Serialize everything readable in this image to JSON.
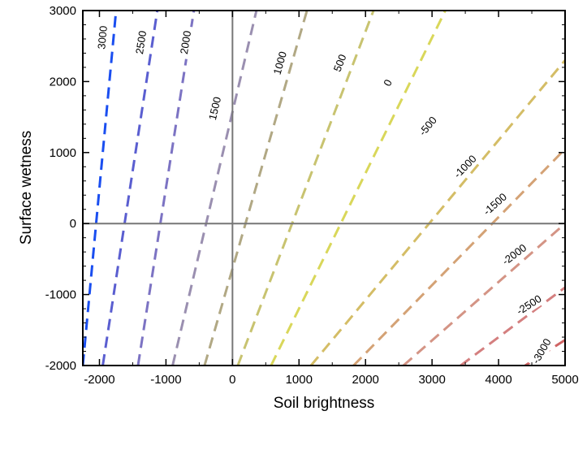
{
  "chart_data": {
    "type": "line",
    "title": "",
    "xlabel": "Soil brightness",
    "ylabel": "Surface wetness",
    "xlim": [
      -2250,
      5000
    ],
    "ylim": [
      -2000,
      3000
    ],
    "xticks": [
      -2000,
      -1000,
      0,
      1000,
      2000,
      3000,
      4000,
      5000
    ],
    "yticks": [
      -2000,
      -1000,
      0,
      1000,
      2000,
      3000
    ],
    "xtick_labels": [
      "-2000",
      "-1000",
      "0",
      "1000",
      "2000",
      "3000",
      "4000",
      "5000"
    ],
    "ytick_labels": [
      "-2000",
      "-1000",
      "0",
      "1000",
      "2000",
      "3000"
    ],
    "zero_lines": true,
    "grid": false,
    "contours": [
      {
        "level": 3000,
        "label": "3000",
        "color": "#1a4ef0",
        "p1": [
          -2250,
          -2000
        ],
        "p2": [
          -1750,
          3000
        ]
      },
      {
        "level": 2500,
        "label": "2500",
        "color": "#5a5ed0",
        "p1": [
          -1950,
          -2000
        ],
        "p2": [
          -1130,
          3000
        ]
      },
      {
        "level": 2000,
        "label": "2000",
        "color": "#7c73c3",
        "p1": [
          -1420,
          -2000
        ],
        "p2": [
          -580,
          3000
        ]
      },
      {
        "level": 1500,
        "label": "1500",
        "color": "#9a8fb0",
        "p1": [
          -900,
          -2000
        ],
        "p2": [
          360,
          3000
        ]
      },
      {
        "level": 1000,
        "label": "1000",
        "color": "#b1a884",
        "p1": [
          -420,
          -2000
        ],
        "p2": [
          1120,
          3000
        ]
      },
      {
        "level": 500,
        "label": "500",
        "color": "#c8c370",
        "p1": [
          80,
          -2000
        ],
        "p2": [
          2120,
          3000
        ]
      },
      {
        "level": 0,
        "label": "0",
        "color": "#d9d75a",
        "p1": [
          580,
          -2000
        ],
        "p2": [
          3200,
          3000
        ]
      },
      {
        "level": -500,
        "label": "-500",
        "color": "#d4bd66",
        "p1": [
          1180,
          -2000
        ],
        "p2": [
          5000,
          2300
        ]
      },
      {
        "level": -1000,
        "label": "-1000",
        "color": "#d4a275",
        "p1": [
          1820,
          -2000
        ],
        "p2": [
          5000,
          1050
        ]
      },
      {
        "level": -1500,
        "label": "-1500",
        "color": "#d49485",
        "p1": [
          2570,
          -2000
        ],
        "p2": [
          5000,
          0
        ]
      },
      {
        "level": -2000,
        "label": "-2000",
        "color": "#d47f7f",
        "p1": [
          3430,
          -2000
        ],
        "p2": [
          5000,
          -900
        ]
      },
      {
        "level": -2500,
        "label": "-2500",
        "color": "#cf6464",
        "p1": [
          4400,
          -2000
        ],
        "p2": [
          5000,
          -1640
        ]
      },
      {
        "level": -3000,
        "label": "-3000",
        "color": "#c94848",
        "p1": [
          5000,
          -2000
        ],
        "p2": [
          5000,
          -2000
        ]
      }
    ],
    "label_positions": [
      {
        "level": 3000,
        "x": -1950,
        "y": 2620
      },
      {
        "level": 2500,
        "x": -1370,
        "y": 2550
      },
      {
        "level": 2000,
        "x": -700,
        "y": 2550
      },
      {
        "level": 1500,
        "x": -260,
        "y": 1620
      },
      {
        "level": 1000,
        "x": 720,
        "y": 2260
      },
      {
        "level": 500,
        "x": 1620,
        "y": 2260
      },
      {
        "level": 0,
        "x": 2340,
        "y": 1980
      },
      {
        "level": -500,
        "x": 2940,
        "y": 1370
      },
      {
        "level": -1000,
        "x": 3500,
        "y": 800
      },
      {
        "level": -1500,
        "x": 3950,
        "y": 270
      },
      {
        "level": -2000,
        "x": 4240,
        "y": -440
      },
      {
        "level": -2500,
        "x": 4460,
        "y": -1150
      },
      {
        "level": -3000,
        "x": 4650,
        "y": -1800
      }
    ]
  }
}
